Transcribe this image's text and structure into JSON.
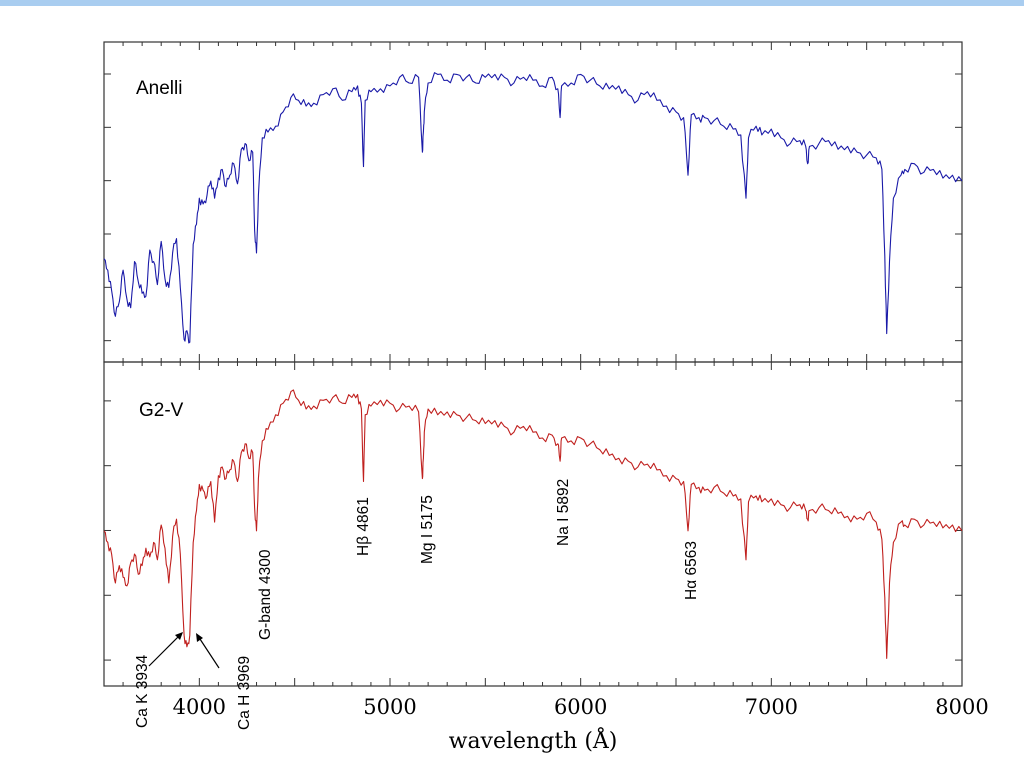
{
  "chart_data": {
    "type": "line",
    "xlabel": "wavelength (Å)",
    "xlim": [
      3500,
      8000
    ],
    "xticks": [
      4000,
      5000,
      6000,
      7000,
      8000
    ],
    "grid": false,
    "panels": [
      {
        "label": "Anelli",
        "color": "#1a1aa8",
        "ylim": [
          0,
          1
        ],
        "series": [
          {
            "x": [
              3500,
              3520,
              3540,
              3560,
              3580,
              3600,
              3620,
              3640,
              3660,
              3680,
              3700,
              3720,
              3740,
              3760,
              3780,
              3800,
              3820,
              3840,
              3860,
              3880,
              3900,
              3920,
              3935,
              3950,
              3968,
              3985,
              4000,
              4020,
              4040,
              4060,
              4080,
              4100,
              4120,
              4140,
              4160,
              4180,
              4200,
              4220,
              4240,
              4260,
              4280,
              4290,
              4300,
              4310,
              4330,
              4360,
              4400,
              4440,
              4480,
              4520,
              4560,
              4600,
              4650,
              4700,
              4750,
              4800,
              4830,
              4850,
              4861,
              4870,
              4900,
              4950,
              5000,
              5050,
              5100,
              5150,
              5170,
              5175,
              5180,
              5200,
              5250,
              5300,
              5350,
              5400,
              5450,
              5500,
              5550,
              5600,
              5650,
              5700,
              5750,
              5800,
              5850,
              5880,
              5892,
              5900,
              5950,
              6000,
              6050,
              6100,
              6150,
              6200,
              6250,
              6300,
              6350,
              6400,
              6450,
              6500,
              6540,
              6563,
              6580,
              6620,
              6650,
              6700,
              6750,
              6800,
              6840,
              6867,
              6880,
              6920,
              6950,
              7000,
              7050,
              7100,
              7150,
              7180,
              7190,
              7200,
              7250,
              7300,
              7350,
              7400,
              7450,
              7500,
              7550,
              7580,
              7595,
              7605,
              7620,
              7640,
              7680,
              7700,
              7750,
              7800,
              7850,
              7900,
              7950,
              8000
            ],
            "y": [
              0.31,
              0.27,
              0.2,
              0.11,
              0.16,
              0.27,
              0.17,
              0.14,
              0.3,
              0.23,
              0.19,
              0.18,
              0.34,
              0.3,
              0.22,
              0.37,
              0.24,
              0.21,
              0.33,
              0.38,
              0.21,
              0.03,
              0.06,
              0.02,
              0.36,
              0.43,
              0.52,
              0.5,
              0.53,
              0.58,
              0.52,
              0.59,
              0.62,
              0.56,
              0.6,
              0.64,
              0.57,
              0.69,
              0.71,
              0.65,
              0.68,
              0.41,
              0.33,
              0.53,
              0.73,
              0.75,
              0.77,
              0.82,
              0.87,
              0.86,
              0.84,
              0.85,
              0.88,
              0.9,
              0.86,
              0.89,
              0.91,
              0.85,
              0.63,
              0.86,
              0.89,
              0.9,
              0.91,
              0.94,
              0.92,
              0.94,
              0.68,
              0.75,
              0.82,
              0.92,
              0.95,
              0.93,
              0.95,
              0.94,
              0.92,
              0.94,
              0.95,
              0.94,
              0.92,
              0.94,
              0.93,
              0.91,
              0.94,
              0.9,
              0.8,
              0.91,
              0.92,
              0.95,
              0.93,
              0.91,
              0.9,
              0.91,
              0.88,
              0.86,
              0.89,
              0.86,
              0.84,
              0.82,
              0.8,
              0.6,
              0.81,
              0.8,
              0.8,
              0.79,
              0.77,
              0.76,
              0.74,
              0.52,
              0.73,
              0.77,
              0.74,
              0.76,
              0.73,
              0.71,
              0.72,
              0.7,
              0.64,
              0.7,
              0.71,
              0.72,
              0.69,
              0.7,
              0.68,
              0.67,
              0.66,
              0.62,
              0.32,
              0.05,
              0.3,
              0.52,
              0.6,
              0.62,
              0.64,
              0.61,
              0.62,
              0.59,
              0.6,
              0.58
            ]
          }
        ]
      },
      {
        "label": "G2-V",
        "color": "#c0201e",
        "ylim": [
          0,
          1
        ],
        "series": [
          {
            "x": [
              3500,
              3520,
              3540,
              3560,
              3580,
              3600,
              3620,
              3640,
              3660,
              3680,
              3700,
              3720,
              3740,
              3760,
              3780,
              3800,
              3820,
              3840,
              3860,
              3880,
              3900,
              3920,
              3935,
              3950,
              3968,
              3985,
              4000,
              4020,
              4040,
              4060,
              4080,
              4100,
              4120,
              4140,
              4160,
              4180,
              4200,
              4220,
              4240,
              4260,
              4280,
              4290,
              4300,
              4310,
              4330,
              4360,
              4400,
              4440,
              4480,
              4520,
              4560,
              4600,
              4650,
              4700,
              4750,
              4800,
              4830,
              4850,
              4861,
              4870,
              4900,
              4950,
              5000,
              5050,
              5100,
              5150,
              5170,
              5175,
              5180,
              5200,
              5250,
              5300,
              5350,
              5400,
              5450,
              5500,
              5550,
              5600,
              5650,
              5700,
              5750,
              5800,
              5850,
              5880,
              5892,
              5900,
              5950,
              6000,
              6050,
              6100,
              6150,
              6200,
              6250,
              6300,
              6350,
              6400,
              6450,
              6500,
              6540,
              6563,
              6580,
              6620,
              6650,
              6700,
              6750,
              6800,
              6840,
              6867,
              6880,
              6920,
              6950,
              7000,
              7050,
              7100,
              7150,
              7180,
              7190,
              7200,
              7250,
              7300,
              7350,
              7400,
              7450,
              7500,
              7550,
              7580,
              7595,
              7605,
              7620,
              7640,
              7680,
              7700,
              7750,
              7800,
              7850,
              7900,
              7950,
              8000
            ],
            "y": [
              0.48,
              0.44,
              0.4,
              0.3,
              0.36,
              0.32,
              0.29,
              0.37,
              0.4,
              0.33,
              0.36,
              0.42,
              0.39,
              0.44,
              0.38,
              0.5,
              0.42,
              0.3,
              0.46,
              0.52,
              0.4,
              0.12,
              0.08,
              0.12,
              0.44,
              0.55,
              0.64,
              0.62,
              0.6,
              0.65,
              0.51,
              0.67,
              0.7,
              0.66,
              0.69,
              0.72,
              0.65,
              0.75,
              0.78,
              0.73,
              0.75,
              0.56,
              0.48,
              0.66,
              0.79,
              0.83,
              0.88,
              0.92,
              0.96,
              0.93,
              0.9,
              0.91,
              0.93,
              0.94,
              0.92,
              0.94,
              0.95,
              0.9,
              0.65,
              0.88,
              0.91,
              0.93,
              0.92,
              0.9,
              0.91,
              0.89,
              0.66,
              0.73,
              0.82,
              0.9,
              0.88,
              0.89,
              0.88,
              0.87,
              0.86,
              0.85,
              0.86,
              0.84,
              0.82,
              0.84,
              0.82,
              0.8,
              0.81,
              0.78,
              0.72,
              0.8,
              0.79,
              0.8,
              0.78,
              0.76,
              0.74,
              0.73,
              0.72,
              0.7,
              0.71,
              0.69,
              0.67,
              0.66,
              0.65,
              0.48,
              0.64,
              0.63,
              0.62,
              0.63,
              0.61,
              0.6,
              0.59,
              0.38,
              0.58,
              0.6,
              0.58,
              0.59,
              0.57,
              0.56,
              0.57,
              0.55,
              0.52,
              0.55,
              0.56,
              0.55,
              0.54,
              0.53,
              0.52,
              0.54,
              0.51,
              0.45,
              0.25,
              0.04,
              0.3,
              0.44,
              0.51,
              0.5,
              0.52,
              0.5,
              0.51,
              0.49,
              0.5,
              0.48
            ]
          }
        ]
      }
    ],
    "annotations": [
      {
        "text": "Ca K 3934",
        "x": 3934,
        "arrow": true
      },
      {
        "text": "Ca H 3969",
        "x": 3969,
        "arrow": true
      },
      {
        "text": "G-band 4300",
        "x": 4300
      },
      {
        "text": "Hβ 4861",
        "x": 4861
      },
      {
        "text": "Mg I 5175",
        "x": 5175
      },
      {
        "text": "Na I 5892",
        "x": 5892
      },
      {
        "text": "Hα 6563",
        "x": 6563
      }
    ]
  }
}
